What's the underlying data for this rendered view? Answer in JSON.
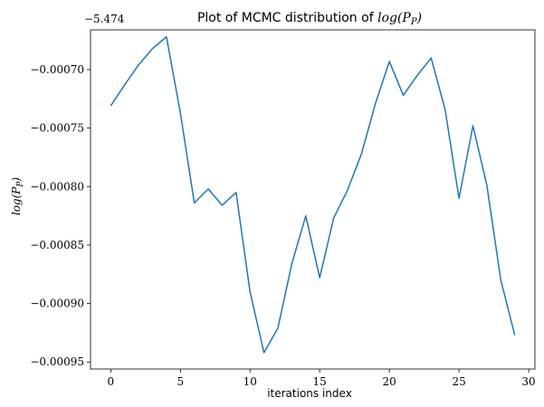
{
  "chart_data": {
    "type": "line",
    "title_prefix": "Plot of MCMC distribution of ",
    "title_math": "log(P",
    "title_math_sub": "P",
    "title_math_close": ")",
    "xlabel": "iterations index",
    "ylabel_math": "log(P",
    "ylabel_math_sub": "P",
    "ylabel_math_close": ")",
    "offset_label": "−5.474",
    "xlim": [
      -1.45,
      30.45
    ],
    "ylim": [
      -0.000956,
      -0.000666
    ],
    "xticks": [
      0,
      5,
      10,
      15,
      20,
      25,
      30
    ],
    "xtick_labels": [
      "0",
      "5",
      "10",
      "15",
      "20",
      "25",
      "30"
    ],
    "yticks": [
      -0.00095,
      -0.0009,
      -0.00085,
      -0.0008,
      -0.00075,
      -0.0007
    ],
    "ytick_labels": [
      "−0.00095",
      "−0.00090",
      "−0.00085",
      "−0.00080",
      "−0.00075",
      "−0.00070"
    ],
    "line_color": "#1f77b4",
    "x": [
      0,
      1,
      2,
      3,
      4,
      5,
      6,
      7,
      8,
      9,
      10,
      11,
      12,
      13,
      14,
      15,
      16,
      17,
      18,
      19,
      20,
      21,
      22,
      23,
      24,
      25,
      26,
      27,
      28,
      29
    ],
    "y": [
      -0.000731,
      -0.000713,
      -0.000696,
      -0.000682,
      -0.000672,
      -0.000737,
      -0.000814,
      -0.000802,
      -0.000816,
      -0.000805,
      -0.00089,
      -0.000942,
      -0.000921,
      -0.000866,
      -0.000825,
      -0.000878,
      -0.000827,
      -0.000803,
      -0.000772,
      -0.000729,
      -0.000693,
      -0.000722,
      -0.000705,
      -0.00069,
      -0.000734,
      -0.00081,
      -0.000748,
      -0.000799,
      -0.00088,
      -0.000927
    ]
  }
}
